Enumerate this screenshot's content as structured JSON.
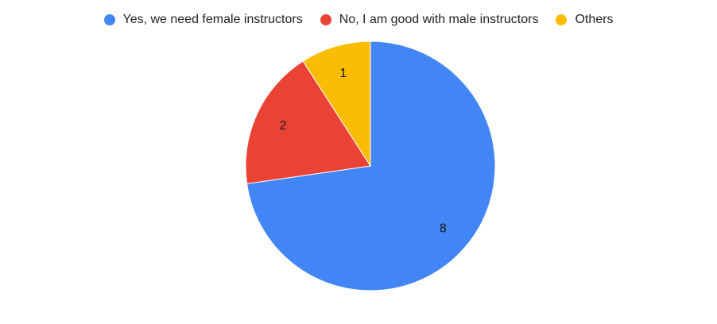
{
  "chart_data": {
    "type": "pie",
    "categories": [
      "Yes, we need female instructors",
      "No, I am good with male instructors",
      "Others"
    ],
    "values": [
      8,
      2,
      1
    ],
    "value_labels": [
      "8",
      "2",
      "1"
    ],
    "colors": [
      "#4285f4",
      "#ea4335",
      "#fbbc04"
    ],
    "legend_position": "top"
  }
}
